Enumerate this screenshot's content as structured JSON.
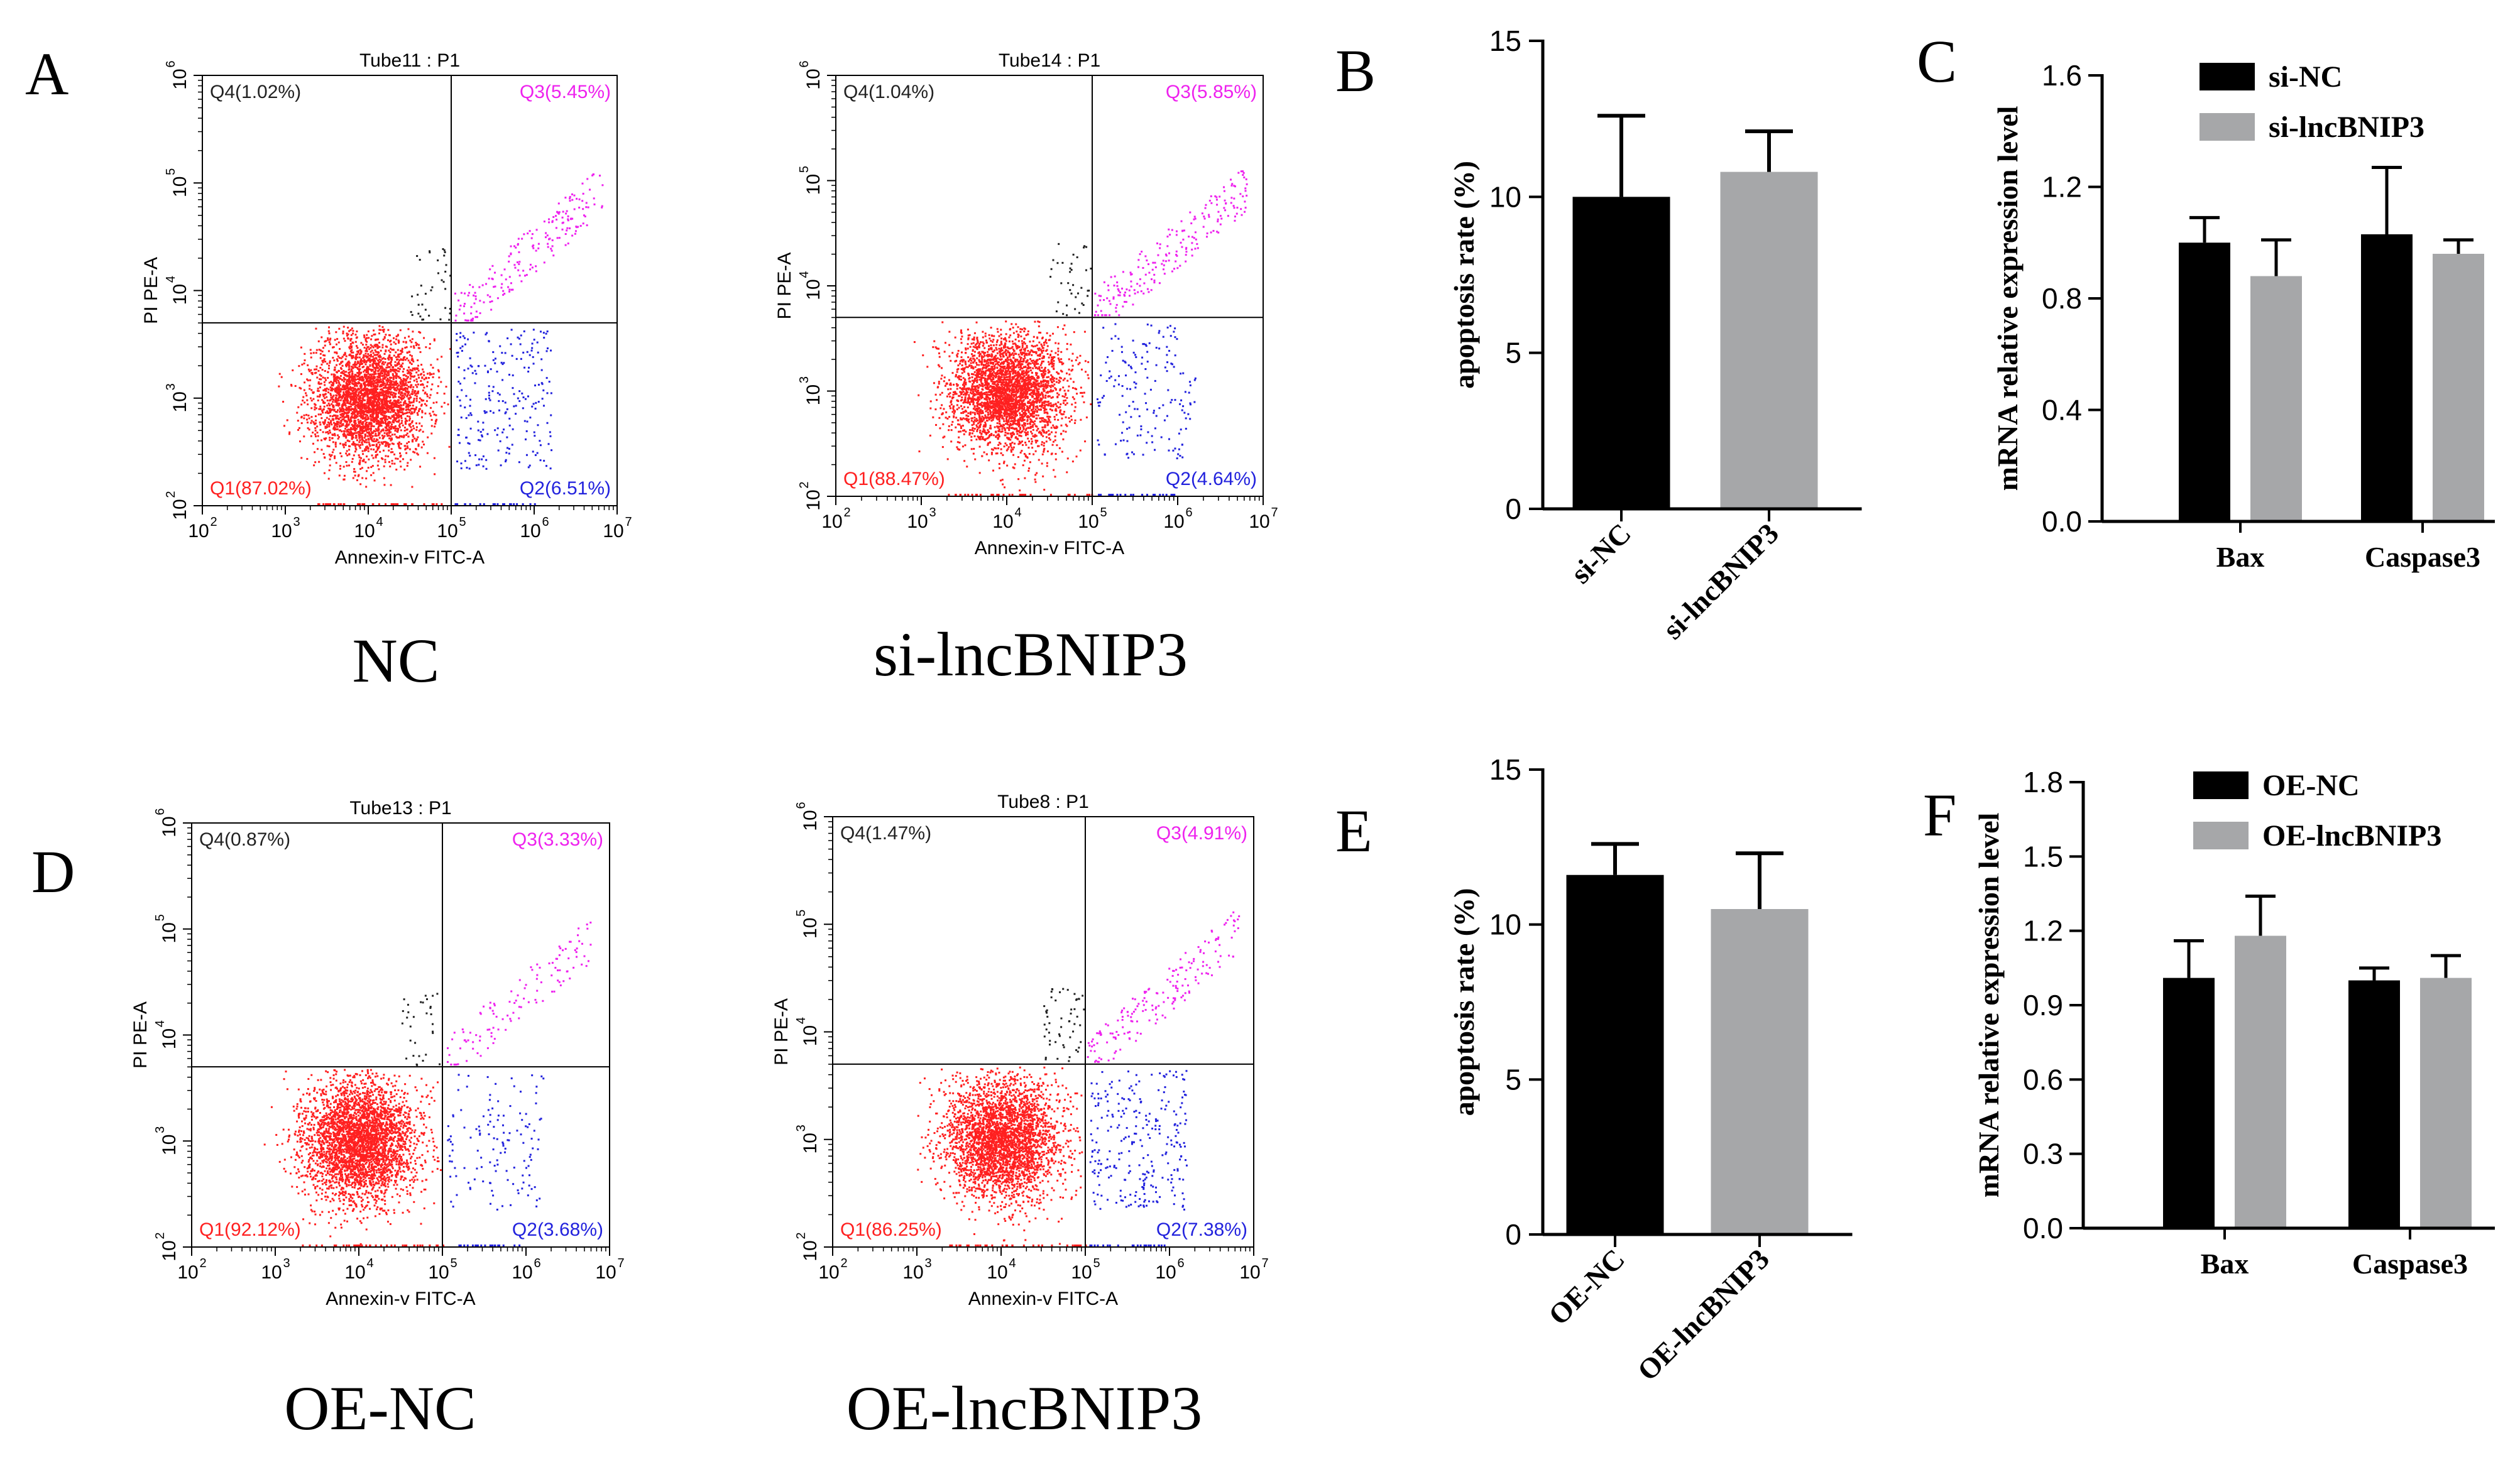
{
  "colors": {
    "q1": "#ff2020",
    "q2": "#2222dd",
    "q3": "#ee22ee",
    "q4": "#222222",
    "black_bar": "#000000",
    "grey_bar": "#a6a7a9"
  },
  "panel_letters": {
    "A": "A",
    "B": "B",
    "C": "C",
    "D": "D",
    "E": "E",
    "F": "F"
  },
  "captions": {
    "nc": "NC",
    "si": "si-lncBNIP3",
    "oenc": "OE-NC",
    "oe": "OE-lncBNIP3"
  },
  "chart_data": [
    {
      "type": "scatter",
      "id": "flow_nc",
      "title": "Tube11 : P1",
      "xlabel": "Annexin-v FITC-A",
      "ylabel": "PI PE-A",
      "xlim_log10": [
        2,
        7
      ],
      "ylim_log10": [
        2,
        6
      ],
      "x_tick_labels": [
        [
          "10",
          "2"
        ],
        [
          "10",
          "3"
        ],
        [
          "10",
          "4"
        ],
        [
          "10",
          "5"
        ],
        [
          "10",
          "6"
        ],
        [
          "10",
          "7"
        ]
      ],
      "y_tick_labels": [
        [
          "10",
          "2"
        ],
        [
          "10",
          "3"
        ],
        [
          "10",
          "4"
        ],
        [
          "10",
          "5"
        ],
        [
          "10",
          "6"
        ]
      ],
      "gate_log10": {
        "x": 5.0,
        "y": 3.7
      },
      "quadrants": {
        "Q1": {
          "label": "Q1(87.02%)",
          "percent": 87.02
        },
        "Q2": {
          "label": "Q2(6.51%)",
          "percent": 6.51
        },
        "Q3": {
          "label": "Q3(5.45%)",
          "percent": 5.45
        },
        "Q4": {
          "label": "Q4(1.02%)",
          "percent": 1.02
        }
      }
    },
    {
      "type": "scatter",
      "id": "flow_si",
      "title": "Tube14 : P1",
      "xlabel": "Annexin-v FITC-A",
      "ylabel": "PI PE-A",
      "xlim_log10": [
        2,
        7
      ],
      "ylim_log10": [
        2,
        6
      ],
      "x_tick_labels": [
        [
          "10",
          "2"
        ],
        [
          "10",
          "3"
        ],
        [
          "10",
          "4"
        ],
        [
          "10",
          "5"
        ],
        [
          "10",
          "6"
        ],
        [
          "10",
          "7"
        ]
      ],
      "y_tick_labels": [
        [
          "10",
          "2"
        ],
        [
          "10",
          "3"
        ],
        [
          "10",
          "4"
        ],
        [
          "10",
          "5"
        ],
        [
          "10",
          "6"
        ]
      ],
      "gate_log10": {
        "x": 5.0,
        "y": 3.7
      },
      "quadrants": {
        "Q1": {
          "label": "Q1(88.47%)",
          "percent": 88.47
        },
        "Q2": {
          "label": "Q2(4.64%)",
          "percent": 4.64
        },
        "Q3": {
          "label": "Q3(5.85%)",
          "percent": 5.85
        },
        "Q4": {
          "label": "Q4(1.04%)",
          "percent": 1.04
        }
      }
    },
    {
      "type": "bar",
      "id": "bar_b",
      "categories": [
        "si-NC",
        "si-lncBNIP3"
      ],
      "values": [
        10.0,
        10.8
      ],
      "errors": [
        2.6,
        1.3
      ],
      "colors": [
        "black",
        "grey"
      ],
      "ylabel": "apoptosis rate (%)",
      "ylim": [
        0,
        15
      ],
      "yticks": [
        0,
        5,
        10,
        15
      ],
      "ytick_labels": [
        "0",
        "5",
        "10",
        "15"
      ]
    },
    {
      "type": "bar",
      "id": "bar_c",
      "categories": [
        "Bax",
        "Caspase3"
      ],
      "series": [
        {
          "name": "si-NC",
          "color": "black",
          "values": [
            1.0,
            1.03
          ],
          "errors": [
            0.09,
            0.24
          ]
        },
        {
          "name": "si-lncBNIP3",
          "color": "grey",
          "values": [
            0.88,
            0.96
          ],
          "errors": [
            0.13,
            0.05
          ]
        }
      ],
      "ylabel": "mRNA relative expression level",
      "ylim": [
        0,
        1.6
      ],
      "yticks": [
        0,
        0.4,
        0.8,
        1.2,
        1.6
      ],
      "ytick_labels": [
        "0.0",
        "0.4",
        "0.8",
        "1.2",
        "1.6"
      ],
      "legend": "top-left"
    },
    {
      "type": "scatter",
      "id": "flow_oenc",
      "title": "Tube13 : P1",
      "xlabel": "Annexin-v FITC-A",
      "ylabel": "PI PE-A",
      "xlim_log10": [
        2,
        7
      ],
      "ylim_log10": [
        2,
        6
      ],
      "x_tick_labels": [
        [
          "10",
          "2"
        ],
        [
          "10",
          "3"
        ],
        [
          "10",
          "4"
        ],
        [
          "10",
          "5"
        ],
        [
          "10",
          "6"
        ],
        [
          "10",
          "7"
        ]
      ],
      "y_tick_labels": [
        [
          "10",
          "2"
        ],
        [
          "10",
          "3"
        ],
        [
          "10",
          "4"
        ],
        [
          "10",
          "5"
        ],
        [
          "10",
          "6"
        ]
      ],
      "gate_log10": {
        "x": 5.0,
        "y": 3.7
      },
      "quadrants": {
        "Q1": {
          "label": "Q1(92.12%)",
          "percent": 92.12
        },
        "Q2": {
          "label": "Q2(3.68%)",
          "percent": 3.68
        },
        "Q3": {
          "label": "Q3(3.33%)",
          "percent": 3.33
        },
        "Q4": {
          "label": "Q4(0.87%)",
          "percent": 0.87
        }
      }
    },
    {
      "type": "scatter",
      "id": "flow_oe",
      "title": "Tube8 : P1",
      "xlabel": "Annexin-v FITC-A",
      "ylabel": "PI PE-A",
      "xlim_log10": [
        2,
        7
      ],
      "ylim_log10": [
        2,
        6
      ],
      "x_tick_labels": [
        [
          "10",
          "2"
        ],
        [
          "10",
          "3"
        ],
        [
          "10",
          "4"
        ],
        [
          "10",
          "5"
        ],
        [
          "10",
          "6"
        ],
        [
          "10",
          "7"
        ]
      ],
      "y_tick_labels": [
        [
          "10",
          "2"
        ],
        [
          "10",
          "3"
        ],
        [
          "10",
          "4"
        ],
        [
          "10",
          "5"
        ],
        [
          "10",
          "6"
        ]
      ],
      "gate_log10": {
        "x": 5.0,
        "y": 3.7
      },
      "quadrants": {
        "Q1": {
          "label": "Q1(86.25%)",
          "percent": 86.25
        },
        "Q2": {
          "label": "Q2(7.38%)",
          "percent": 7.38
        },
        "Q3": {
          "label": "Q3(4.91%)",
          "percent": 4.91
        },
        "Q4": {
          "label": "Q4(1.47%)",
          "percent": 1.47
        }
      }
    },
    {
      "type": "bar",
      "id": "bar_e",
      "categories": [
        "OE-NC",
        "OE-lncBNIP3"
      ],
      "values": [
        11.6,
        10.5
      ],
      "errors": [
        1.0,
        1.8
      ],
      "colors": [
        "black",
        "grey"
      ],
      "ylabel": "apoptosis rate (%)",
      "ylim": [
        0,
        15
      ],
      "yticks": [
        0,
        5,
        10,
        15
      ],
      "ytick_labels": [
        "0",
        "5",
        "10",
        "15"
      ]
    },
    {
      "type": "bar",
      "id": "bar_f",
      "categories": [
        "Bax",
        "Caspase3"
      ],
      "series": [
        {
          "name": "OE-NC",
          "color": "black",
          "values": [
            1.01,
            1.0
          ],
          "errors": [
            0.15,
            0.05
          ]
        },
        {
          "name": "OE-lncBNIP3",
          "color": "grey",
          "values": [
            1.18,
            1.01
          ],
          "errors": [
            0.16,
            0.09
          ]
        }
      ],
      "ylabel": "mRNA relative expression level",
      "ylim": [
        0,
        1.8
      ],
      "yticks": [
        0,
        0.3,
        0.6,
        0.9,
        1.2,
        1.5,
        1.8
      ],
      "ytick_labels": [
        "0.0",
        "0.3",
        "0.6",
        "0.9",
        "1.2",
        "1.5",
        "1.8"
      ],
      "legend": "top-left"
    }
  ]
}
